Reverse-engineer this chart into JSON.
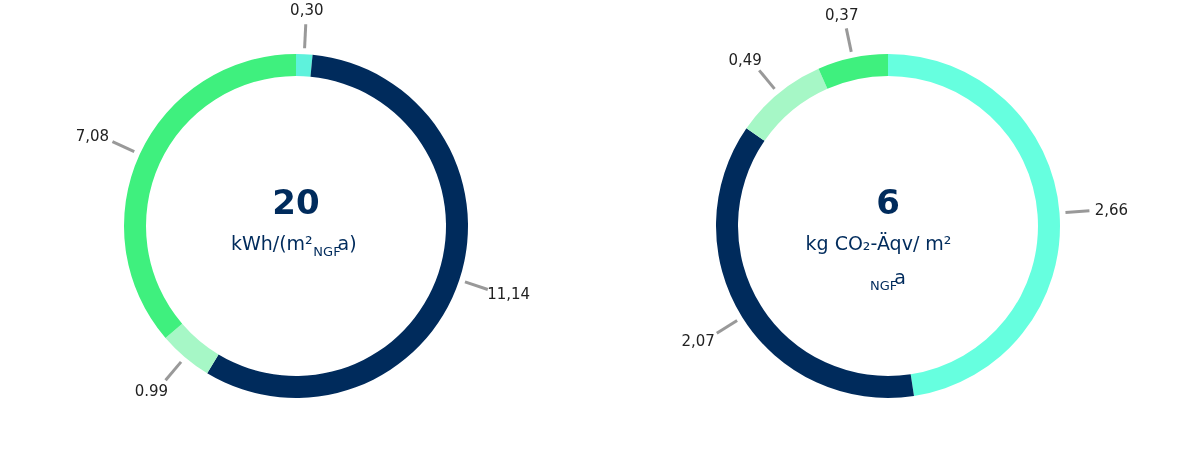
{
  "chart_data": [
    {
      "type": "donut",
      "title": "20",
      "subtitle": "kWh/(m²$_{NGF}$a)",
      "categories": [
        null,
        null,
        null,
        null
      ],
      "values": [
        0.3,
        11.14,
        0.99,
        7.08
      ],
      "value_labels": [
        "0,30",
        "11,14",
        "0.99",
        "7,08"
      ],
      "colors": [
        "#5ef2dc",
        "#002b5c",
        "#a6f7c6",
        "#3ff07e"
      ],
      "legend": false
    },
    {
      "type": "donut",
      "title": "6",
      "subtitle": "kg CO₂-Äqv/ m²$_{NGF}$a",
      "categories": [
        null,
        null,
        null,
        null
      ],
      "values": [
        2.66,
        2.07,
        0.49,
        0.37
      ],
      "value_labels": [
        "2,66",
        "2,07",
        "0,49",
        "0,37"
      ],
      "colors": [
        "#66ffdf",
        "#002b5c",
        "#a6f7c6",
        "#3ff07e"
      ],
      "legend": false
    }
  ]
}
